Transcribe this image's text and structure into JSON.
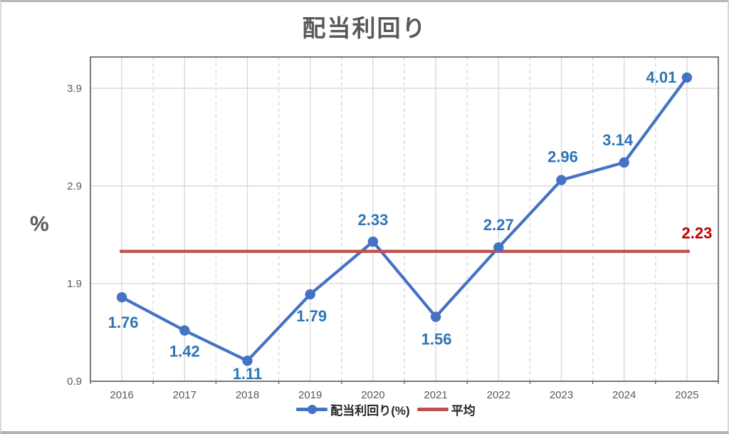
{
  "frame": {
    "border_color": "#c6c6c6",
    "background": "#ffffff"
  },
  "chart_data": {
    "type": "line",
    "title": "配当利回り",
    "ylabel": "%",
    "xlabel": "",
    "categories": [
      "2016",
      "2017",
      "2018",
      "2019",
      "2020",
      "2021",
      "2022",
      "2023",
      "2024",
      "2025"
    ],
    "series": [
      {
        "name": "配当利回り(%)",
        "type": "line",
        "color": "#4472C4",
        "marker": "circle",
        "values": [
          1.76,
          1.42,
          1.11,
          1.79,
          2.33,
          1.56,
          2.27,
          2.96,
          3.14,
          4.01
        ],
        "data_labels": [
          "1.76",
          "1.42",
          "1.11",
          "1.79",
          "2.33",
          "1.56",
          "2.27",
          "2.96",
          "3.14",
          "4.01"
        ],
        "label_color": "#2E75B6",
        "label_offsets": [
          [
            2,
            43
          ],
          [
            0,
            37
          ],
          [
            0,
            26
          ],
          [
            2,
            38
          ],
          [
            0,
            -23
          ],
          [
            1,
            39
          ],
          [
            0,
            -24
          ],
          [
            2,
            -25
          ],
          [
            -9,
            -24
          ],
          [
            -36,
            7
          ]
        ]
      },
      {
        "name": "平均",
        "type": "hline",
        "color": "#C0504D",
        "value": 2.23,
        "label": "2.23",
        "label_color": "#C00000",
        "label_offset": [
          10,
          -18
        ]
      }
    ],
    "ylim": [
      0.9,
      4.22
    ],
    "yticks": [
      "0.9",
      "1.9",
      "2.9",
      "3.9"
    ],
    "grid": {
      "on": true,
      "color": "#D9D9D9",
      "vertical_solid_at_categories": true,
      "vertical_dashed_at_boundaries": true
    },
    "axis_color": "#595959",
    "tick_label_color": "#595959",
    "title_color": "#595959",
    "legend_position": "bottom"
  }
}
